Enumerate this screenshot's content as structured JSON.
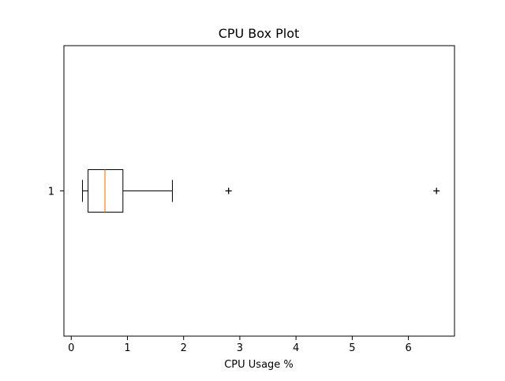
{
  "chart_data": {
    "type": "box",
    "orientation": "horizontal",
    "title": "CPU Box Plot",
    "xlabel": "CPU Usage %",
    "ylabel": "",
    "xlim": [
      -0.13,
      6.82
    ],
    "x_ticks": [
      0,
      1,
      2,
      3,
      4,
      5,
      6
    ],
    "y_ticks": [
      "1"
    ],
    "grid": false,
    "boxes": [
      {
        "label": "1",
        "whisker_low": 0.2,
        "q1": 0.3,
        "median": 0.6,
        "q3": 0.92,
        "whisker_high": 1.8,
        "outliers": [
          2.8,
          6.5
        ]
      }
    ],
    "colors": {
      "box": "#000000",
      "median": "#ff7f0e",
      "whisker": "#000000",
      "outlier": "#000000"
    }
  }
}
